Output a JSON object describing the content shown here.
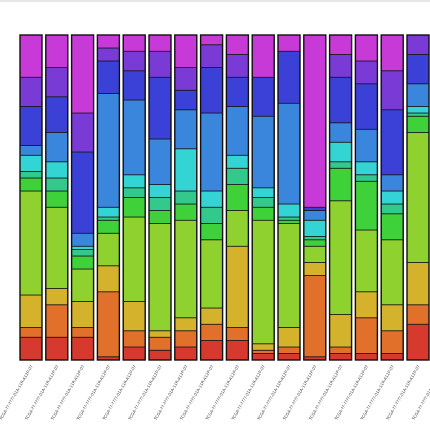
{
  "chart_data": {
    "type": "bar",
    "stacked": true,
    "normalized": true,
    "title": "",
    "xlabel": "",
    "ylabel": "",
    "ylim": [
      0,
      1
    ],
    "grid": false,
    "legend": "none",
    "categories": [
      "TCGA-??-????-01A-11R-A12P-07",
      "TCGA-??-????-01A-11R-A12P-07",
      "TCGA-??-????-01A-11R-A12P-07",
      "TCGA-??-????-01A-11R-A12P-07",
      "TCGA-??-????-01A-11R-A12P-07",
      "TCGA-??-????-01A-11R-A12P-07",
      "TCGA-??-????-01A-11R-A12P-07",
      "TCGA-??-????-01A-11R-A12P-07",
      "TCGA-??-????-01A-11R-A12P-07",
      "TCGA-??-????-01A-11R-A12P-07",
      "TCGA-??-????-01A-11R-A12P-07",
      "TCGA-??-????-01A-11R-A12P-07",
      "TCGA-??-????-01A-11R-A12P-07",
      "TCGA-??-????-01A-11R-A12P-07",
      "TCGA-??-????-01A-11R-A12P-07",
      "TCGA-??-????-01A-11R-A12P-07",
      "TCGA-??-????-01A-11R-A12P-07"
    ],
    "colors": [
      "#d63a2e",
      "#e0702a",
      "#d4b22c",
      "#8fd12e",
      "#3fd13a",
      "#33c98c",
      "#35d4d4",
      "#3a86dc",
      "#3b40d6",
      "#7a3ad6",
      "#c83ad8"
    ],
    "bars": [
      [
        0.07,
        0.03,
        0.1,
        0.32,
        0.04,
        0.02,
        0.05,
        0.03,
        0.12,
        0.09,
        0.13
      ],
      [
        0.07,
        0.1,
        0.05,
        0.25,
        0.05,
        0.04,
        0.05,
        0.09,
        0.11,
        0.09,
        0.1
      ],
      [
        0.07,
        0.03,
        0.08,
        0.1,
        0.04,
        0.02,
        0.01,
        0.04,
        0.25,
        0.12,
        0.24
      ],
      [
        0.01,
        0.2,
        0.08,
        0.1,
        0.04,
        0.01,
        0.03,
        0.35,
        0.1,
        0.04,
        0.04
      ],
      [
        0.04,
        0.05,
        0.09,
        0.26,
        0.06,
        0.03,
        0.04,
        0.23,
        0.09,
        0.06,
        0.05
      ],
      [
        0.03,
        0.04,
        0.02,
        0.33,
        0.04,
        0.04,
        0.04,
        0.14,
        0.19,
        0.08,
        0.05
      ],
      [
        0.04,
        0.05,
        0.04,
        0.3,
        0.05,
        0.04,
        0.13,
        0.12,
        0.06,
        0.07,
        0.1
      ],
      [
        0.06,
        0.05,
        0.05,
        0.21,
        0.05,
        0.05,
        0.05,
        0.24,
        0.14,
        0.07,
        0.03
      ],
      [
        0.06,
        0.04,
        0.25,
        0.11,
        0.08,
        0.05,
        0.04,
        0.15,
        0.09,
        0.07,
        0.06
      ],
      [
        0.02,
        0.01,
        0.02,
        0.38,
        0.04,
        0.03,
        0.03,
        0.22,
        0.12,
        0.0,
        0.13
      ],
      [
        0.02,
        0.02,
        0.06,
        0.32,
        0.01,
        0.01,
        0.04,
        0.31,
        0.16,
        0.0,
        0.05
      ],
      [
        0.01,
        0.25,
        0.04,
        0.05,
        0.02,
        0.01,
        0.05,
        0.03,
        0.01,
        0.0,
        0.53
      ],
      [
        0.02,
        0.02,
        0.1,
        0.35,
        0.1,
        0.02,
        0.06,
        0.06,
        0.14,
        0.07,
        0.06
      ],
      [
        0.02,
        0.11,
        0.08,
        0.19,
        0.15,
        0.02,
        0.04,
        0.1,
        0.14,
        0.07,
        0.08
      ],
      [
        0.02,
        0.07,
        0.08,
        0.2,
        0.08,
        0.03,
        0.04,
        0.05,
        0.2,
        0.12,
        0.11
      ],
      [
        0.11,
        0.06,
        0.13,
        0.4,
        0.05,
        0.01,
        0.02,
        0.07,
        0.09,
        0.06,
        0.0
      ],
      [
        0.1,
        0.04,
        0.1,
        0.3,
        0.05,
        0.03,
        0.06,
        0.14,
        0.1,
        0.06,
        0.02
      ]
    ]
  }
}
